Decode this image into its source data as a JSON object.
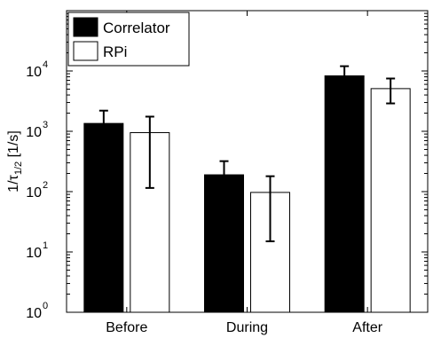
{
  "chart_data": {
    "type": "bar",
    "scale": "log",
    "categories": [
      "Before",
      "During",
      "After"
    ],
    "ylim": [
      1,
      100000
    ],
    "yticks": [
      {
        "value": 1,
        "base": "10",
        "exp": "0"
      },
      {
        "value": 10,
        "base": "10",
        "exp": "1"
      },
      {
        "value": 100,
        "base": "10",
        "exp": "2"
      },
      {
        "value": 1000,
        "base": "10",
        "exp": "3"
      },
      {
        "value": 10000,
        "base": "10",
        "exp": "4"
      }
    ],
    "ylabel": {
      "prefix": "1/τ",
      "sub": "1/2",
      "suffix": " [1/s]"
    },
    "legend_position": "top-left",
    "grid": false,
    "series": [
      {
        "name": "Correlator",
        "color": "#000000",
        "values": [
          1350,
          190,
          8300
        ],
        "err_low": [
          920,
          115,
          5800
        ],
        "err_high": [
          2200,
          320,
          12000
        ]
      },
      {
        "name": "RPi",
        "color": "#ffffff",
        "values": [
          950,
          97,
          5100
        ],
        "err_low": [
          115,
          15,
          2900
        ],
        "err_high": [
          1750,
          180,
          7500
        ]
      }
    ]
  }
}
